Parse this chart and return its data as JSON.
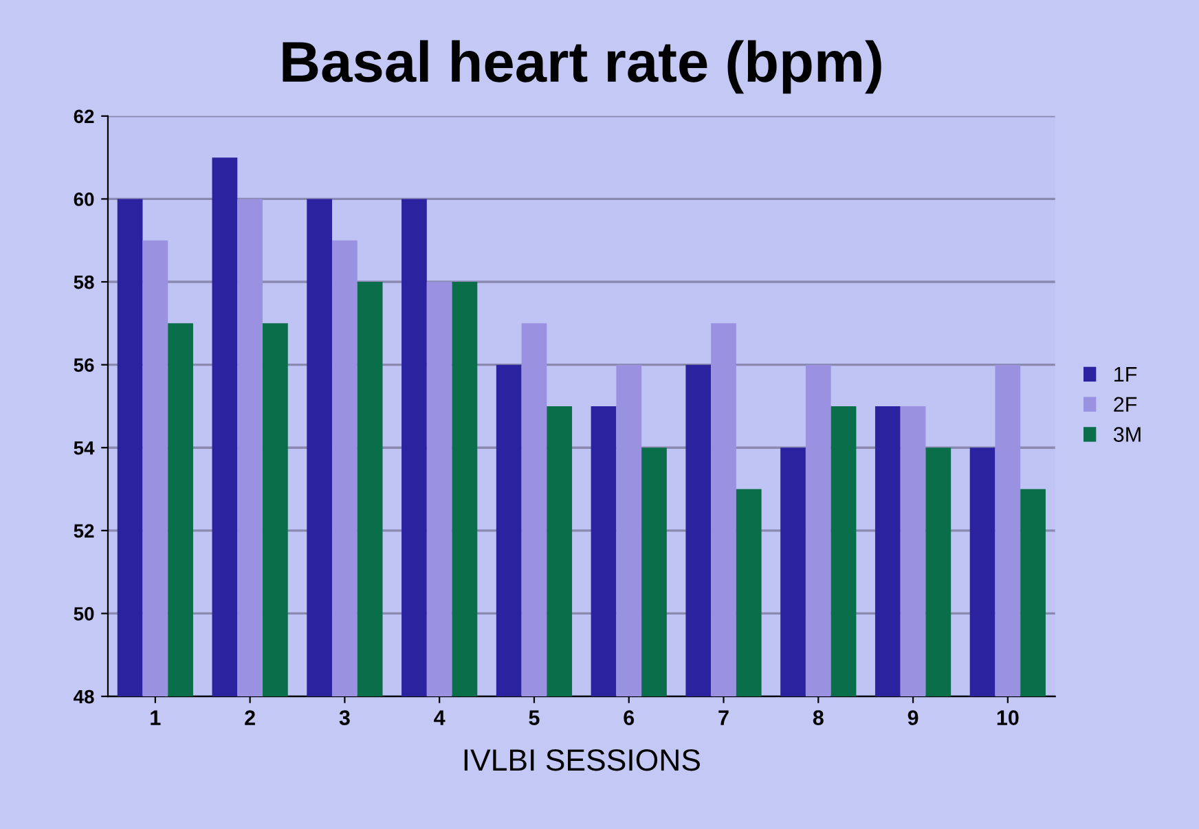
{
  "chart_data": {
    "type": "bar",
    "title": "Basal heart rate (bpm)",
    "xlabel": "IVLBI SESSIONS",
    "categories": [
      "1",
      "2",
      "3",
      "4",
      "5",
      "6",
      "7",
      "8",
      "9",
      "10"
    ],
    "series": [
      {
        "name": "1F",
        "color": "#2b22a0",
        "values": [
          60,
          61,
          60,
          60,
          56,
          55,
          56,
          54,
          55,
          54
        ]
      },
      {
        "name": "2F",
        "color": "#9a92e0",
        "values": [
          59,
          60,
          59,
          58,
          57,
          56,
          57,
          56,
          55,
          56
        ]
      },
      {
        "name": "3M",
        "color": "#0a6e4a",
        "values": [
          57,
          57,
          58,
          58,
          55,
          54,
          53,
          55,
          54,
          53
        ]
      }
    ],
    "ylim": [
      48,
      62
    ],
    "yticks": [
      48,
      50,
      52,
      54,
      56,
      58,
      60,
      62
    ],
    "grid": "y",
    "legend": "right"
  }
}
